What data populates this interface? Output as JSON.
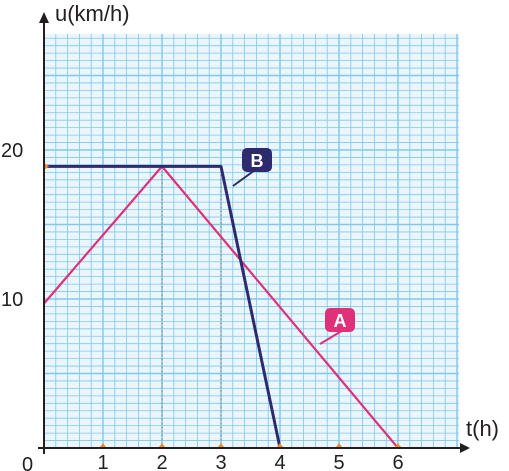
{
  "chart_data": {
    "type": "line",
    "xlabel": "t(h)",
    "ylabel": "u(km/h)",
    "origin_label": "0",
    "xlim": [
      0,
      7
    ],
    "ylim": [
      0,
      21
    ],
    "x_ticks": [
      "1",
      "2",
      "3",
      "4",
      "5",
      "6"
    ],
    "y_ticks": [
      "10",
      "20"
    ],
    "grid": true,
    "series": [
      {
        "name": "A",
        "color": "#e0307a",
        "points": [
          [
            0,
            9.7
          ],
          [
            2,
            18.9
          ],
          [
            6,
            0
          ]
        ]
      },
      {
        "name": "B",
        "color": "#2e2a6e",
        "points": [
          [
            0,
            18.9
          ],
          [
            3,
            18.9
          ],
          [
            4,
            0
          ]
        ]
      }
    ],
    "guides_x": [
      2,
      3
    ]
  },
  "colors": {
    "grid": "#7ec8ec",
    "grid_fill": "#eaf6fc",
    "axis": "#231f20",
    "tick_marker": "#f08a2a",
    "guide": "#808080"
  }
}
